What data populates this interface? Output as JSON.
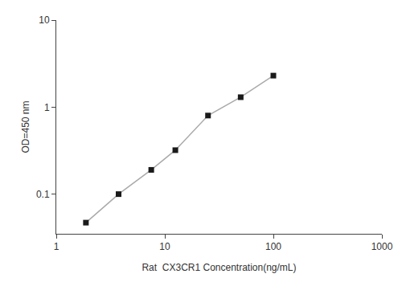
{
  "chart_data": {
    "type": "line",
    "x": [
      1.875,
      3.75,
      7.5,
      12.5,
      25,
      50,
      100
    ],
    "values": [
      0.047,
      0.1,
      0.19,
      0.32,
      0.8,
      1.3,
      2.3
    ],
    "xlabel": "Rat  CX3CR1 Concentration(ng/mL)",
    "ylabel": "OD=450 nm",
    "color": "#aaaaaa",
    "colors": [
      "#1a1a1a",
      "#1a1a1a",
      "#1a1a1a",
      "#1a1a1a",
      "#1a1a1a",
      "#1a1a1a",
      "#1a1a1a"
    ],
    "marker": "square",
    "log": true,
    "xlim": [
      1,
      1000
    ],
    "ylim": [
      0.035,
      10
    ],
    "xticks": [
      1,
      10,
      100,
      1000
    ],
    "yticks": [
      0.1,
      1,
      10
    ],
    "grid": false
  }
}
